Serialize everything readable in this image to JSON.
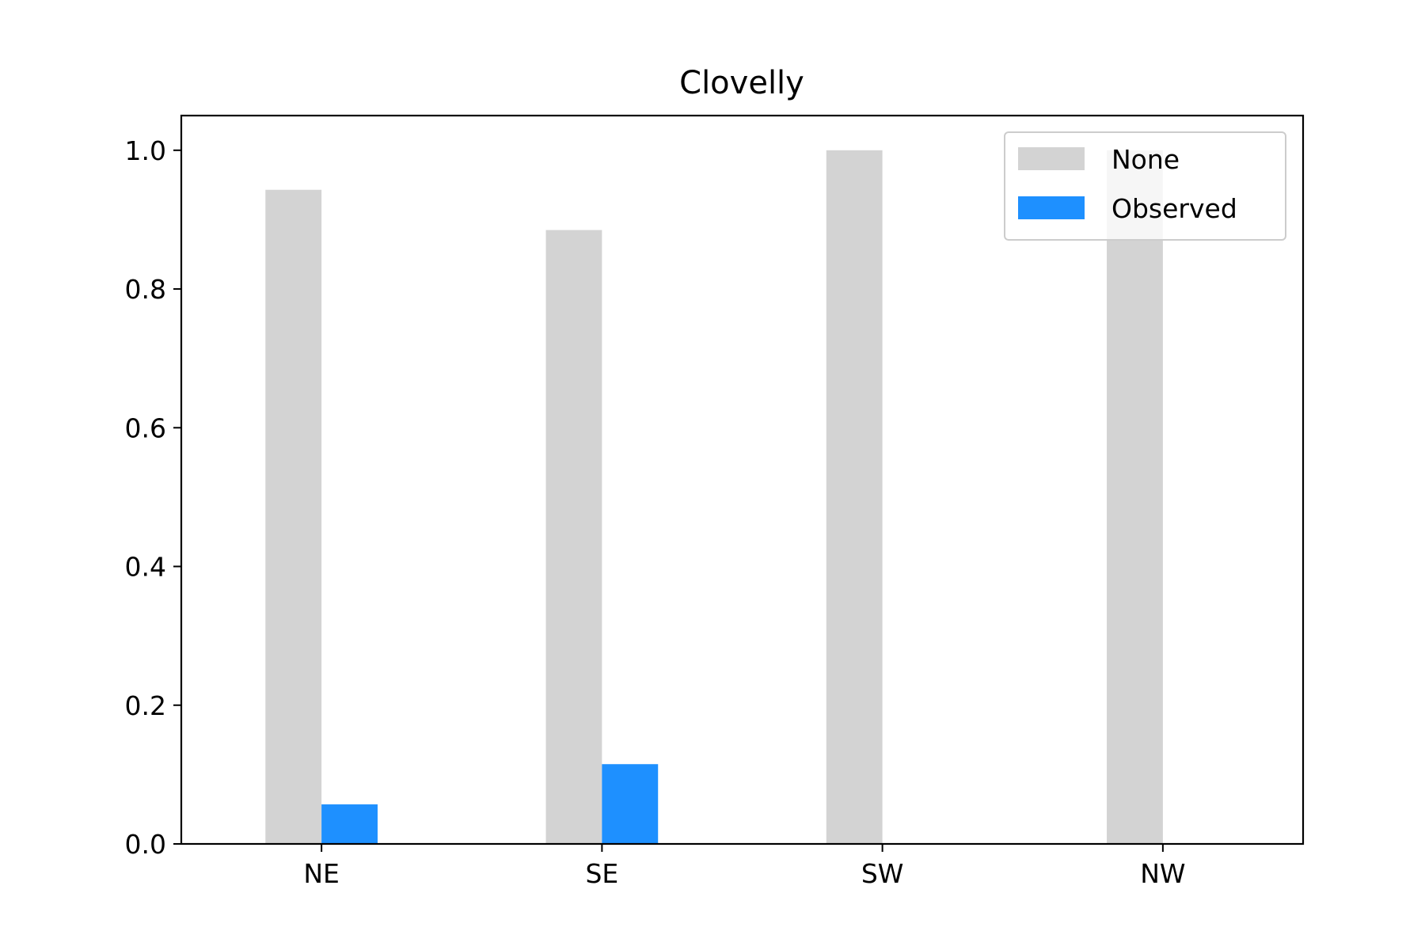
{
  "chart_data": {
    "type": "bar",
    "title": "Clovelly",
    "xlabel": "",
    "ylabel": "",
    "categories": [
      "NE",
      "SE",
      "SW",
      "NW"
    ],
    "series": [
      {
        "name": "None",
        "values": [
          0.943,
          0.885,
          1.0,
          1.0
        ],
        "color": "#d3d3d3"
      },
      {
        "name": "Observed",
        "values": [
          0.057,
          0.115,
          0.0,
          0.0
        ],
        "color": "#1e90ff"
      }
    ],
    "ylim": [
      0,
      1.05
    ],
    "yticks": [
      "0.0",
      "0.2",
      "0.4",
      "0.6",
      "0.8",
      "1.0"
    ],
    "ytick_values": [
      0,
      0.2,
      0.4,
      0.6,
      0.8,
      1.0
    ],
    "grid": false,
    "legend_position": "top-right"
  }
}
